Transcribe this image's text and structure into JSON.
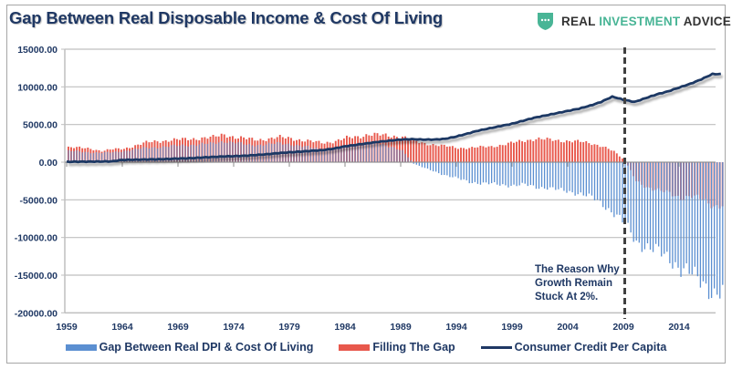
{
  "header": {
    "title": "Gap Between Real Disposable Income & Cost Of Living",
    "brand": {
      "icon": "shield-chat-icon",
      "part1": "REAL ",
      "part2": "INVESTMENT",
      "part3": " ADVICE",
      "accent_color": "#49b596"
    }
  },
  "annotation": {
    "lines": [
      "The Reason Why",
      "Growth Remain",
      "Stuck At 2%."
    ],
    "marker_year": 2009
  },
  "colors": {
    "gap": "#5b8fd1",
    "filling": "#e8584c",
    "credit": "#1f3864",
    "grid": "#bfbfbf",
    "text": "#1f3864"
  },
  "chart_data": {
    "type": "bar+line",
    "title": "Gap Between Real Disposable Income & Cost Of Living",
    "xlabel": "",
    "ylabel": "",
    "ylim": [
      -20000,
      15000
    ],
    "yticks": [
      15000,
      10000,
      5000,
      0,
      -5000,
      -10000,
      -15000,
      -20000
    ],
    "ytick_labels": [
      "15000.00",
      "10000.00",
      "5000.00",
      "0.00",
      "-5000.00",
      "-10000.00",
      "-15000.00",
      "-20000.00"
    ],
    "xlim": [
      1959,
      2017.75
    ],
    "xticks": [
      "1959",
      "1964",
      "1969",
      "1974",
      "1979",
      "1984",
      "1989",
      "1994",
      "1999",
      "2004",
      "2009",
      "2014"
    ],
    "grid": true,
    "legend_position": "bottom",
    "frequency": "quarterly (interpolated from annual anchor values)",
    "years": [
      1959,
      1960,
      1961,
      1962,
      1963,
      1964,
      1965,
      1966,
      1967,
      1968,
      1969,
      1970,
      1971,
      1972,
      1973,
      1974,
      1975,
      1976,
      1977,
      1978,
      1979,
      1980,
      1981,
      1982,
      1983,
      1984,
      1985,
      1986,
      1987,
      1988,
      1989,
      1990,
      1991,
      1992,
      1993,
      1994,
      1995,
      1996,
      1997,
      1998,
      1999,
      2000,
      2001,
      2002,
      2003,
      2004,
      2005,
      2006,
      2007,
      2008,
      2009,
      2010,
      2011,
      2012,
      2013,
      2014,
      2015,
      2016,
      2017
    ],
    "series": [
      {
        "name": "Gap Between Real DPI & Cost Of Living",
        "type": "bar",
        "color": "#5b8fd1",
        "values": [
          1500,
          1400,
          1300,
          1250,
          1300,
          1500,
          1700,
          1900,
          2000,
          2100,
          2200,
          2300,
          2400,
          2500,
          2800,
          2600,
          2300,
          2300,
          2400,
          2500,
          2400,
          2100,
          1900,
          1700,
          1800,
          2100,
          2300,
          2500,
          2400,
          2100,
          1500,
          -200,
          -800,
          -1300,
          -1800,
          -2200,
          -2600,
          -2800,
          -2900,
          -3000,
          -3100,
          -3000,
          -3300,
          -3400,
          -3700,
          -3900,
          -4200,
          -4700,
          -5600,
          -6800,
          -8300,
          -10500,
          -11300,
          -12000,
          -12700,
          -14200,
          -15000,
          -15800,
          -17600
        ]
      },
      {
        "name": "Filling The Gap",
        "type": "bar",
        "color": "#e8584c",
        "values": [
          2000,
          1900,
          1800,
          1500,
          1700,
          1800,
          2200,
          2600,
          2800,
          2900,
          3000,
          3100,
          3200,
          3300,
          3700,
          3300,
          3100,
          3000,
          3100,
          3300,
          3200,
          2900,
          2700,
          2600,
          2800,
          3200,
          3400,
          3700,
          3600,
          3500,
          3400,
          2800,
          2500,
          2300,
          2100,
          1900,
          1900,
          2000,
          2100,
          2300,
          2600,
          2900,
          3100,
          3000,
          2900,
          2800,
          2700,
          2500,
          2100,
          1400,
          200,
          -2500,
          -3300,
          -3800,
          -4100,
          -4700,
          -4600,
          -4900,
          -5800
        ]
      },
      {
        "name": "Consumer Credit Per Capita",
        "type": "line",
        "color": "#1f3864",
        "values": [
          50,
          60,
          70,
          80,
          100,
          300,
          320,
          350,
          380,
          420,
          480,
          520,
          600,
          680,
          750,
          800,
          850,
          950,
          1050,
          1200,
          1300,
          1400,
          1500,
          1600,
          1800,
          2100,
          2300,
          2500,
          2700,
          2850,
          3000,
          3050,
          3000,
          3000,
          3100,
          3400,
          3800,
          4200,
          4500,
          4800,
          5100,
          5500,
          5900,
          6200,
          6500,
          6800,
          7100,
          7500,
          8000,
          8700,
          8300,
          8000,
          8500,
          9000,
          9400,
          9900,
          10400,
          11000,
          11700
        ]
      }
    ]
  }
}
